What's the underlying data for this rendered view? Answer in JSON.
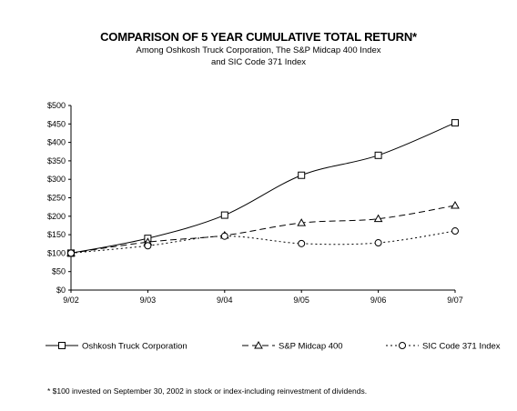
{
  "chart_data": {
    "type": "line",
    "title": "COMPARISON OF 5 YEAR CUMULATIVE TOTAL RETURN*",
    "subtitle": [
      "Among Oshkosh Truck Corporation, The S&P Midcap 400 Index",
      "and SIC Code 371 Index"
    ],
    "categories": [
      "9/02",
      "9/03",
      "9/04",
      "9/05",
      "9/06",
      "9/07"
    ],
    "y_tick_labels": [
      "$0",
      "$50",
      "$100",
      "$150",
      "$200",
      "$250",
      "$300",
      "$350",
      "$400",
      "$450",
      "$500"
    ],
    "ylim": [
      0,
      500
    ],
    "grid": false,
    "legend_position": "bottom",
    "series": [
      {
        "name": "Oshkosh Truck Corporation",
        "marker": "square",
        "dash": "solid",
        "values": [
          100,
          140,
          203,
          311,
          365,
          453
        ]
      },
      {
        "name": "S&P Midcap 400",
        "marker": "triangle",
        "dash": "dashed",
        "values": [
          100,
          130,
          148,
          182,
          193,
          229
        ]
      },
      {
        "name": "SIC Code 371 Index",
        "marker": "circle",
        "dash": "dotted",
        "values": [
          100,
          120,
          146,
          126,
          128,
          160
        ]
      }
    ],
    "footnote": "* $100 invested on September 30, 2002 in stock or index-including reinvestment of dividends."
  }
}
